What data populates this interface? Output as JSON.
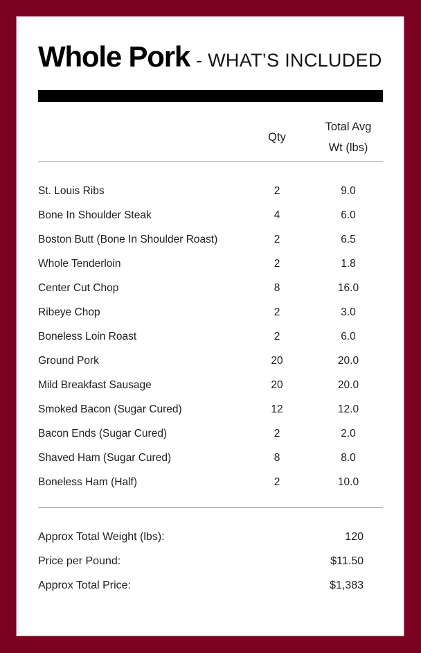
{
  "theme": {
    "border_color": "#7c0221",
    "card_background": "#ffffff",
    "bar_color": "#000000",
    "text_color": "#1d1d1d",
    "rule_color": "#8f8f8f"
  },
  "header": {
    "title": "Whole Pork",
    "subtitle": "- WHAT’S INCLUDED"
  },
  "table": {
    "columns": {
      "item": "",
      "qty": "Qty",
      "wt_line1": "Total Avg",
      "wt_line2": "Wt (lbs)"
    },
    "rows": [
      {
        "item": "St. Louis Ribs",
        "qty": "2",
        "wt": "9.0"
      },
      {
        "item": "Bone In Shoulder Steak",
        "qty": "4",
        "wt": "6.0"
      },
      {
        "item": "Boston Butt (Bone In Shoulder Roast)",
        "qty": "2",
        "wt": "6.5"
      },
      {
        "item": "Whole Tenderloin",
        "qty": "2",
        "wt": "1.8"
      },
      {
        "item": "Center Cut Chop",
        "qty": "8",
        "wt": "16.0"
      },
      {
        "item": "Ribeye Chop",
        "qty": "2",
        "wt": "3.0"
      },
      {
        "item": "Boneless Loin Roast",
        "qty": "2",
        "wt": "6.0"
      },
      {
        "item": "Ground Pork",
        "qty": "20",
        "wt": "20.0"
      },
      {
        "item": "Mild Breakfast Sausage",
        "qty": "20",
        "wt": "20.0"
      },
      {
        "item": "Smoked Bacon (Sugar Cured)",
        "qty": "12",
        "wt": "12.0"
      },
      {
        "item": "Bacon Ends (Sugar Cured)",
        "qty": "2",
        "wt": "2.0"
      },
      {
        "item": "Shaved Ham (Sugar Cured)",
        "qty": "8",
        "wt": "8.0"
      },
      {
        "item": "Boneless Ham (Half)",
        "qty": "2",
        "wt": "10.0"
      }
    ]
  },
  "summary": [
    {
      "label": "Approx Total Weight (lbs):",
      "value": "120"
    },
    {
      "label": "Price per Pound:",
      "value": "$11.50"
    },
    {
      "label": "Approx Total Price:",
      "value": "$1,383"
    }
  ]
}
